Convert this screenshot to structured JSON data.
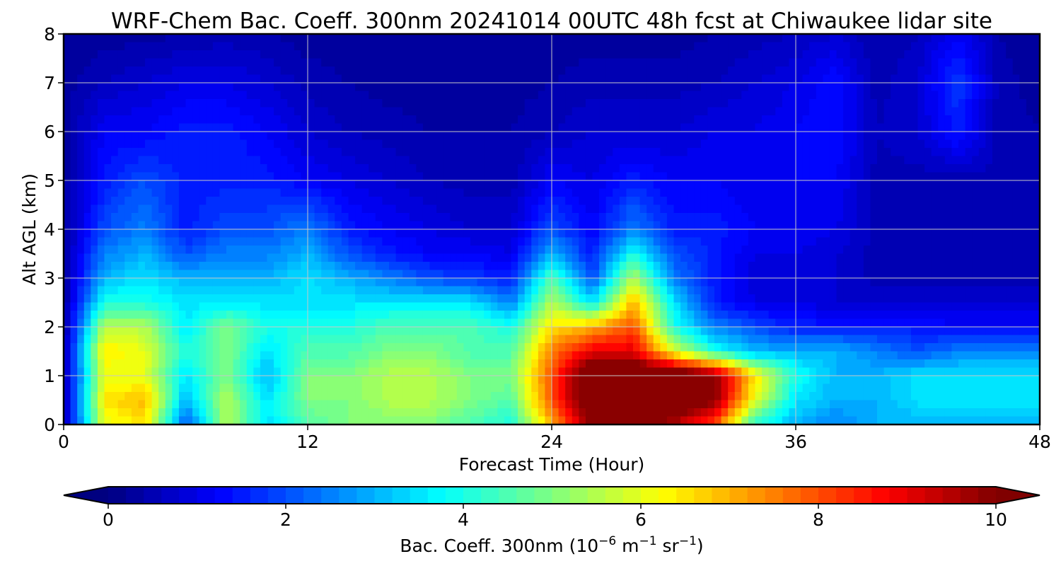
{
  "chart_data": {
    "type": "heatmap",
    "title": "WRF-Chem Bac. Coeff. 300nm  20241014 00UTC 48h fcst at Chiwaukee lidar site",
    "xlabel": "Forecast Time (Hour)",
    "ylabel": "Alt AGL (km)",
    "xlim": [
      0,
      48
    ],
    "ylim": [
      0,
      8
    ],
    "x_ticks": [
      "0",
      "12",
      "24",
      "36",
      "48"
    ],
    "y_ticks": [
      "0",
      "1",
      "2",
      "3",
      "4",
      "5",
      "6",
      "7",
      "8"
    ],
    "grid": true,
    "colormap": "jet",
    "colorbar": {
      "orientation": "horizontal",
      "placement": "bottom",
      "range": [
        0,
        10
      ],
      "extend": "both",
      "ticks": [
        "0",
        "2",
        "4",
        "6",
        "8",
        "10"
      ],
      "label_main": "Bac. Coeff. 300nm  (10",
      "label_exp1": "−6",
      "label_mid": " m",
      "label_exp2": "−1",
      "label_mid2": " sr",
      "label_exp3": "−1",
      "label_end": ")"
    },
    "x_hours": [
      0,
      2,
      4,
      6,
      8,
      10,
      12,
      14,
      16,
      18,
      20,
      22,
      24,
      26,
      28,
      30,
      32,
      34,
      36,
      38,
      40,
      42,
      44,
      46,
      48
    ],
    "z_km": [
      0,
      0.5,
      1,
      1.5,
      2,
      2.5,
      3,
      3.5,
      4,
      5,
      6,
      7,
      8
    ],
    "values": [
      [
        0.4,
        6.0,
        6.5,
        2.0,
        5.5,
        3.5,
        4.5,
        5.0,
        5.0,
        5.0,
        4.5,
        4.0,
        7.0,
        10.0,
        10.0,
        9.5,
        8.0,
        4.0,
        3.0,
        2.5,
        3.0,
        3.0,
        3.0,
        3.0,
        3.0
      ],
      [
        0.4,
        6.5,
        7.0,
        3.0,
        5.5,
        3.5,
        5.0,
        5.0,
        5.5,
        5.5,
        5.0,
        4.5,
        8.0,
        11.0,
        11.0,
        11.0,
        10.0,
        6.0,
        3.5,
        3.0,
        3.0,
        3.5,
        3.5,
        3.5,
        3.5
      ],
      [
        0.4,
        6.0,
        6.0,
        3.5,
        5.0,
        3.0,
        5.0,
        5.0,
        5.5,
        5.5,
        5.0,
        5.0,
        8.0,
        11.0,
        11.0,
        11.0,
        10.0,
        6.5,
        4.0,
        3.0,
        3.0,
        3.5,
        3.5,
        3.5,
        3.5
      ],
      [
        0.4,
        6.5,
        6.0,
        4.0,
        5.0,
        3.5,
        4.5,
        4.5,
        5.0,
        5.0,
        4.5,
        4.5,
        7.5,
        9.0,
        9.0,
        6.0,
        4.0,
        3.0,
        3.0,
        3.0,
        2.5,
        2.0,
        2.5,
        2.5,
        2.5
      ],
      [
        0.3,
        5.5,
        5.5,
        3.5,
        5.0,
        4.0,
        4.0,
        4.0,
        4.5,
        4.5,
        4.5,
        4.0,
        6.5,
        7.0,
        8.0,
        4.0,
        2.5,
        2.0,
        1.5,
        1.5,
        1.5,
        1.5,
        1.2,
        1.2,
        1.2
      ],
      [
        0.3,
        4.0,
        4.0,
        3.5,
        3.5,
        3.5,
        3.5,
        3.5,
        3.5,
        3.5,
        3.5,
        2.5,
        5.5,
        3.5,
        7.0,
        3.5,
        1.5,
        1.0,
        1.0,
        0.8,
        0.8,
        0.8,
        0.8,
        0.8,
        0.8
      ],
      [
        0.3,
        3.0,
        3.5,
        3.0,
        3.0,
        3.0,
        3.5,
        3.0,
        2.5,
        2.0,
        1.8,
        1.5,
        4.5,
        2.0,
        5.5,
        2.5,
        1.5,
        0.8,
        0.8,
        0.8,
        0.5,
        0.5,
        0.5,
        0.5,
        0.5
      ],
      [
        0.3,
        2.5,
        3.0,
        2.0,
        2.5,
        2.5,
        3.0,
        2.0,
        1.5,
        1.2,
        1.2,
        1.0,
        3.0,
        1.5,
        4.0,
        2.0,
        1.5,
        1.0,
        1.0,
        0.8,
        0.5,
        0.5,
        0.5,
        0.5,
        0.5
      ],
      [
        0.3,
        2.0,
        2.5,
        1.5,
        2.0,
        2.0,
        2.5,
        1.5,
        1.2,
        1.0,
        0.8,
        0.8,
        2.0,
        1.2,
        2.5,
        1.5,
        1.5,
        1.2,
        1.2,
        1.0,
        0.5,
        0.5,
        0.5,
        0.5,
        0.4
      ],
      [
        0.3,
        1.5,
        2.0,
        1.5,
        1.5,
        1.5,
        1.2,
        1.0,
        0.8,
        0.6,
        0.5,
        0.5,
        1.2,
        1.0,
        1.5,
        1.2,
        1.2,
        1.0,
        1.2,
        1.2,
        0.5,
        0.5,
        0.5,
        0.5,
        0.4
      ],
      [
        0.3,
        1.2,
        1.2,
        1.5,
        1.5,
        1.2,
        0.8,
        0.6,
        0.5,
        0.4,
        0.4,
        0.4,
        0.6,
        0.8,
        0.8,
        0.8,
        1.0,
        1.0,
        1.2,
        1.4,
        0.6,
        0.8,
        1.5,
        0.5,
        0.4
      ],
      [
        0.3,
        0.6,
        0.8,
        1.0,
        1.0,
        0.8,
        0.5,
        0.4,
        0.3,
        0.3,
        0.3,
        0.3,
        0.4,
        0.5,
        0.5,
        0.5,
        0.6,
        0.8,
        1.0,
        1.4,
        0.5,
        0.8,
        1.8,
        0.5,
        0.3
      ],
      [
        0.2,
        0.3,
        0.3,
        0.4,
        0.5,
        0.4,
        0.3,
        0.3,
        0.2,
        0.2,
        0.2,
        0.2,
        0.3,
        0.3,
        0.3,
        0.3,
        0.4,
        0.5,
        0.6,
        0.8,
        0.4,
        0.6,
        1.2,
        0.4,
        0.2
      ]
    ]
  }
}
